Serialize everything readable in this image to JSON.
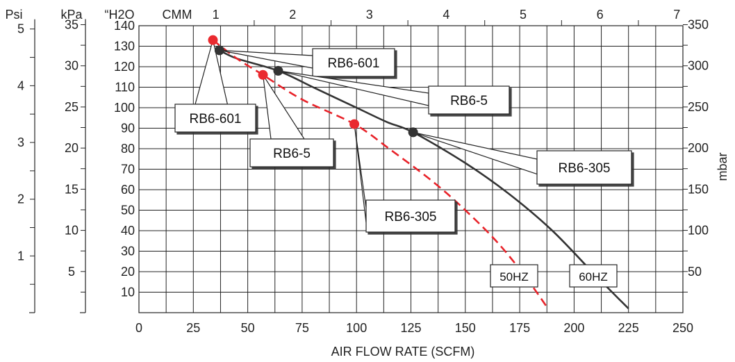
{
  "chart_data": {
    "type": "line",
    "xlabel": "AIR FLOW RATE (SCFM)",
    "x_ticks": [
      0,
      25,
      50,
      75,
      100,
      125,
      150,
      175,
      200,
      225,
      250
    ],
    "xlim": [
      0,
      250
    ],
    "top_axis": {
      "label": "CMM",
      "ticks": [
        1,
        2,
        3,
        4,
        5,
        6,
        7
      ]
    },
    "left_axes": [
      {
        "label": "Psi",
        "ticks": [
          1,
          2,
          3,
          4,
          5
        ]
      },
      {
        "label": "kPa",
        "ticks": [
          5,
          10,
          15,
          20,
          25,
          30,
          35
        ]
      },
      {
        "label": "“H2O",
        "ticks": [
          10,
          20,
          30,
          40,
          50,
          60,
          70,
          80,
          90,
          100,
          110,
          120,
          130,
          140
        ]
      }
    ],
    "ylim": [
      0,
      140
    ],
    "right_axis": {
      "label": "mbar",
      "ticks": [
        50,
        100,
        150,
        200,
        250,
        300,
        350
      ]
    },
    "series": [
      {
        "name": "60HZ",
        "color": "#333333",
        "dash": false,
        "points": [
          [
            37,
            128
          ],
          [
            45,
            124
          ],
          [
            64,
            118
          ],
          [
            80,
            110
          ],
          [
            100,
            100
          ],
          [
            114,
            93
          ],
          [
            126,
            88
          ],
          [
            150,
            73
          ],
          [
            170,
            58
          ],
          [
            190,
            40
          ],
          [
            210,
            18
          ],
          [
            225,
            2
          ]
        ]
      },
      {
        "name": "50HZ",
        "color": "#e8232a",
        "dash": true,
        "points": [
          [
            34,
            133
          ],
          [
            45,
            124
          ],
          [
            57,
            116
          ],
          [
            75,
            104
          ],
          [
            99,
            92
          ],
          [
            115,
            80
          ],
          [
            135,
            64
          ],
          [
            150,
            50
          ],
          [
            165,
            34
          ],
          [
            178,
            17
          ],
          [
            188,
            2
          ]
        ]
      }
    ],
    "markers": [
      {
        "series": "60HZ",
        "x": 37,
        "y": 128,
        "label": "RB6-601"
      },
      {
        "series": "60HZ",
        "x": 64,
        "y": 118,
        "label": "RB6-5"
      },
      {
        "series": "60HZ",
        "x": 126,
        "y": 88,
        "label": "RB6-305"
      },
      {
        "series": "50HZ",
        "x": 34,
        "y": 133,
        "label": "RB6-601"
      },
      {
        "series": "50HZ",
        "x": 57,
        "y": 116,
        "label": "RB6-5"
      },
      {
        "series": "50HZ",
        "x": 99,
        "y": 92,
        "label": "RB6-305"
      }
    ],
    "grid": true
  }
}
